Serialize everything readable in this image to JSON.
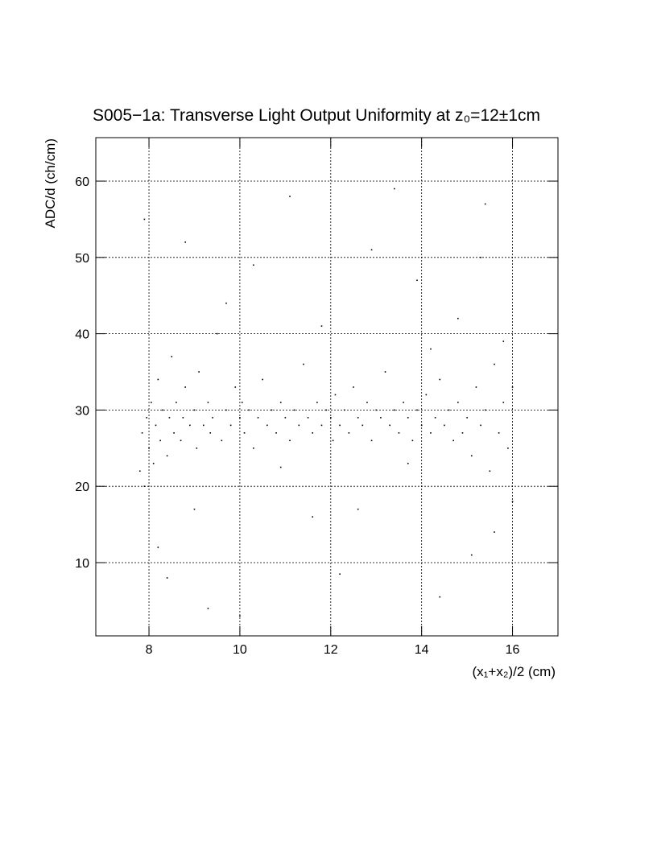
{
  "chart_data": {
    "type": "scatter",
    "title": "S005−1a: Transverse Light Output Uniformity at z₀=12±1cm",
    "x_label": "(x₁+x₂)/2 (cm)",
    "y_label": "ADC/d (ch/cm)",
    "xlim": [
      6.83,
      17.0
    ],
    "ylim": [
      0.4,
      65.7
    ],
    "xticks": [
      8,
      10,
      12,
      14,
      16
    ],
    "yticks": [
      10,
      20,
      30,
      40,
      50,
      60
    ],
    "grid": true,
    "color": "#000000",
    "x": [
      7.8,
      7.85,
      7.9,
      7.95,
      8.0,
      8.05,
      8.1,
      8.15,
      8.2,
      8.25,
      8.3,
      8.4,
      8.45,
      8.5,
      8.55,
      8.6,
      8.7,
      8.75,
      8.8,
      8.9,
      9.0,
      9.05,
      9.1,
      9.2,
      9.3,
      9.35,
      9.4,
      9.5,
      9.6,
      9.7,
      9.8,
      9.9,
      10.0,
      10.05,
      10.1,
      10.2,
      10.3,
      10.4,
      10.5,
      10.6,
      10.7,
      10.8,
      10.9,
      11.0,
      11.1,
      11.2,
      11.3,
      11.4,
      11.5,
      11.6,
      11.7,
      11.8,
      11.9,
      12.0,
      12.05,
      12.1,
      12.2,
      12.3,
      12.4,
      12.5,
      12.6,
      12.7,
      12.8,
      12.9,
      13.0,
      13.1,
      13.2,
      13.3,
      13.4,
      13.5,
      13.6,
      13.7,
      13.8,
      13.9,
      14.0,
      14.1,
      14.2,
      14.3,
      14.4,
      14.5,
      14.6,
      14.7,
      14.8,
      14.9,
      15.0,
      15.1,
      15.2,
      15.3,
      15.4,
      15.5,
      15.6,
      15.7,
      15.8,
      15.9,
      16.0,
      7.9,
      8.4,
      8.8,
      9.3,
      9.7,
      10.3,
      11.1,
      11.6,
      12.2,
      12.9,
      13.4,
      13.9,
      14.4,
      14.8,
      15.1,
      15.4,
      15.8,
      16.0,
      8.2,
      10.9,
      12.6,
      13.7,
      15.6,
      9.0,
      11.8,
      14.2,
      10.0,
      15.3
    ],
    "values": [
      22,
      27,
      20,
      29,
      25,
      31,
      23,
      28,
      34,
      26,
      30,
      24,
      29,
      37,
      27,
      31,
      26,
      29,
      33,
      28,
      30,
      25,
      35,
      28,
      31,
      27,
      29,
      40,
      26,
      30,
      28,
      33,
      29,
      31,
      27,
      30,
      25,
      29,
      34,
      28,
      30,
      27,
      31,
      29,
      26,
      30,
      28,
      36,
      29,
      27,
      31,
      28,
      30,
      29,
      26,
      32,
      28,
      30,
      27,
      33,
      29,
      28,
      31,
      26,
      30,
      29,
      35,
      28,
      30,
      27,
      31,
      29,
      26,
      30,
      28,
      32,
      27,
      29,
      34,
      28,
      30,
      26,
      31,
      27,
      29,
      24,
      33,
      28,
      30,
      22,
      36,
      27,
      31,
      25,
      33,
      55,
      8,
      52,
      4,
      44,
      49,
      58,
      16,
      8.5,
      51,
      59,
      47,
      5.5,
      42,
      11,
      57,
      39,
      18,
      12,
      22.5,
      17,
      23,
      14,
      17,
      41,
      38,
      3,
      50
    ]
  }
}
